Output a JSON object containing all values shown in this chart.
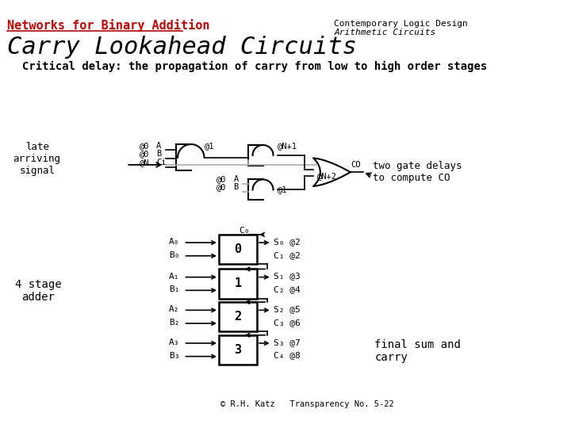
{
  "title_left": "Networks for Binary Addition",
  "title_right_line1": "Contemporary Logic Design",
  "title_right_line2": "Arithmetic Circuits",
  "heading": "Carry Lookahead Circuits",
  "subheading": "Critical delay: the propagation of carry from low to high order stages",
  "late_arriving_label": "late\narriving\nsignal",
  "two_gate_label": "two gate delays\nto compute CO",
  "four_stage_label": "4 stage\nadder",
  "final_label": "final sum and\ncarry",
  "copyright": "© R.H. Katz   Transparency No. 5-22",
  "bg_color": "#ffffff",
  "title_color": "#cc0000",
  "text_color": "#000000",
  "gate_color": "#000000",
  "wire_color": "#000000",
  "gray_wire_color": "#aaaaaa"
}
